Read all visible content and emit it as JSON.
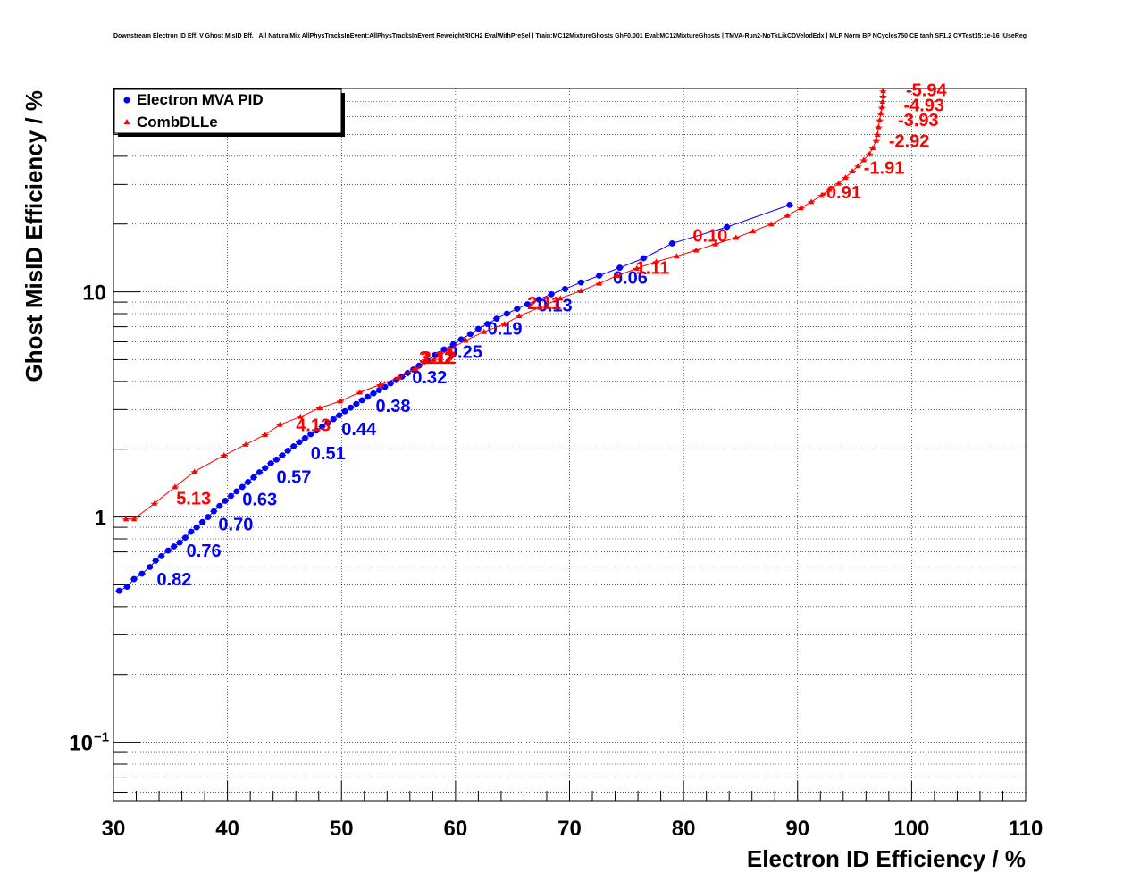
{
  "chart_data": {
    "type": "scatter",
    "title": "Downstream Electron ID Eff. V Ghost MisID Eff. | All NaturalMix AllPhysTracksInEvent:AllPhysTracksInEvent ReweightRICH2 EvalWithPreSel | Train:MC12MixtureGhosts GhF0.001 Eval:MC12MixtureGhosts | TMVA-Run2-NoTkLikCDVelodEdx | MLP Norm BP NCycles750 CE tanh SF1.2 CVTest15:1e-16 !UseReg",
    "xlabel": "Electron ID Efficiency / %",
    "ylabel": "Ghost MisID Efficiency / %",
    "xlim": [
      30,
      110
    ],
    "ylim": [
      0.055,
      80
    ],
    "y_scale": "log",
    "x_ticks": [
      "30",
      "40",
      "50",
      "60",
      "70",
      "80",
      "90",
      "100",
      "110"
    ],
    "y_ticks": [
      {
        "value": 0.1,
        "base": "10",
        "exp": "−1"
      },
      {
        "value": 1,
        "base": "1",
        "exp": ""
      },
      {
        "value": 10,
        "base": "10",
        "exp": ""
      }
    ],
    "grid": true,
    "legend_position": "top-left",
    "series": [
      {
        "name": "Electron MVA PID",
        "color": "#0000ff",
        "marker": "circle",
        "points": [
          [
            30.5,
            0.47
          ],
          [
            31.2,
            0.49
          ],
          [
            31.8,
            0.53
          ],
          [
            32.5,
            0.56
          ],
          [
            33.2,
            0.6
          ],
          [
            33.7,
            0.64
          ],
          [
            34.2,
            0.67
          ],
          [
            34.8,
            0.71
          ],
          [
            35.3,
            0.74
          ],
          [
            35.8,
            0.77
          ],
          [
            36.3,
            0.81
          ],
          [
            36.8,
            0.86
          ],
          [
            37.3,
            0.9
          ],
          [
            37.8,
            0.95
          ],
          [
            38.3,
            1.0
          ],
          [
            38.8,
            1.06
          ],
          [
            39.3,
            1.12
          ],
          [
            39.8,
            1.18
          ],
          [
            40.3,
            1.24
          ],
          [
            40.8,
            1.3
          ],
          [
            41.3,
            1.36
          ],
          [
            41.8,
            1.43
          ],
          [
            42.3,
            1.5
          ],
          [
            42.8,
            1.58
          ],
          [
            43.3,
            1.65
          ],
          [
            43.8,
            1.73
          ],
          [
            44.3,
            1.8
          ],
          [
            44.8,
            1.88
          ],
          [
            45.3,
            1.97
          ],
          [
            45.8,
            2.06
          ],
          [
            46.3,
            2.15
          ],
          [
            46.8,
            2.24
          ],
          [
            47.3,
            2.33
          ],
          [
            47.8,
            2.42
          ],
          [
            48.3,
            2.52
          ],
          [
            48.8,
            2.62
          ],
          [
            49.3,
            2.72
          ],
          [
            49.8,
            2.83
          ],
          [
            50.3,
            2.95
          ],
          [
            50.8,
            3.06
          ],
          [
            51.3,
            3.18
          ],
          [
            51.8,
            3.3
          ],
          [
            52.3,
            3.42
          ],
          [
            52.8,
            3.54
          ],
          [
            53.3,
            3.66
          ],
          [
            53.8,
            3.78
          ],
          [
            54.3,
            3.92
          ],
          [
            54.8,
            4.06
          ],
          [
            55.3,
            4.2
          ],
          [
            55.8,
            4.36
          ],
          [
            56.3,
            4.52
          ],
          [
            56.8,
            4.7
          ],
          [
            57.5,
            4.95
          ],
          [
            58.2,
            5.25
          ],
          [
            59.0,
            5.55
          ],
          [
            59.8,
            5.85
          ],
          [
            60.5,
            6.15
          ],
          [
            61.3,
            6.5
          ],
          [
            62.0,
            6.85
          ],
          [
            62.8,
            7.2
          ],
          [
            63.6,
            7.6
          ],
          [
            64.5,
            8.0
          ],
          [
            65.4,
            8.4
          ],
          [
            66.3,
            8.8
          ],
          [
            67.3,
            9.25
          ],
          [
            68.4,
            9.75
          ],
          [
            69.6,
            10.3
          ],
          [
            71.0,
            11.0
          ],
          [
            72.6,
            11.8
          ],
          [
            74.4,
            12.8
          ],
          [
            76.5,
            14.1
          ],
          [
            79.0,
            16.4
          ],
          [
            83.8,
            19.4
          ],
          [
            89.3,
            24.3
          ]
        ],
        "labels": [
          {
            "x": 33.8,
            "y": 0.53,
            "text": "0.82"
          },
          {
            "x": 36.4,
            "y": 0.71,
            "text": "0.76"
          },
          {
            "x": 39.2,
            "y": 0.93,
            "text": "0.70"
          },
          {
            "x": 41.3,
            "y": 1.2,
            "text": "0.63"
          },
          {
            "x": 44.3,
            "y": 1.51,
            "text": "0.57"
          },
          {
            "x": 47.3,
            "y": 1.92,
            "text": "0.51"
          },
          {
            "x": 50.0,
            "y": 2.46,
            "text": "0.44"
          },
          {
            "x": 53.0,
            "y": 3.12,
            "text": "0.38"
          },
          {
            "x": 56.2,
            "y": 4.18,
            "text": "0.32"
          },
          {
            "x": 59.3,
            "y": 5.42,
            "text": "0.25"
          },
          {
            "x": 62.8,
            "y": 6.88,
            "text": "0.19"
          },
          {
            "x": 67.2,
            "y": 8.71,
            "text": "0.13"
          },
          {
            "x": 73.8,
            "y": 11.6,
            "text": "0.06"
          }
        ]
      },
      {
        "name": "CombDLLe",
        "color": "#ff0000",
        "marker": "triangle",
        "points": [
          [
            31.1,
            0.98
          ],
          [
            31.8,
            0.98
          ],
          [
            33.6,
            1.15
          ],
          [
            35.4,
            1.36
          ],
          [
            37.1,
            1.59
          ],
          [
            39.7,
            1.88
          ],
          [
            41.6,
            2.1
          ],
          [
            43.3,
            2.32
          ],
          [
            44.6,
            2.57
          ],
          [
            46.4,
            2.79
          ],
          [
            48.1,
            3.05
          ],
          [
            49.9,
            3.27
          ],
          [
            51.6,
            3.58
          ],
          [
            53.4,
            3.87
          ],
          [
            55.0,
            4.17
          ],
          [
            56.5,
            4.56
          ],
          [
            58.1,
            5.01
          ],
          [
            59.5,
            5.57
          ],
          [
            60.9,
            6.09
          ],
          [
            62.5,
            6.65
          ],
          [
            64.3,
            7.19
          ],
          [
            65.6,
            7.81
          ],
          [
            67.4,
            8.52
          ],
          [
            69.2,
            9.36
          ],
          [
            71.0,
            10.1
          ],
          [
            72.6,
            10.9
          ],
          [
            74.2,
            11.8
          ],
          [
            75.9,
            12.7
          ],
          [
            77.6,
            13.6
          ],
          [
            79.4,
            14.4
          ],
          [
            81.1,
            15.3
          ],
          [
            82.8,
            16.3
          ],
          [
            84.6,
            17.4
          ],
          [
            86.1,
            18.6
          ],
          [
            87.7,
            20.0
          ],
          [
            89.1,
            21.8
          ],
          [
            90.3,
            23.6
          ],
          [
            91.2,
            25.1
          ],
          [
            92.1,
            26.8
          ],
          [
            92.8,
            28.5
          ],
          [
            93.6,
            30.3
          ],
          [
            94.2,
            32.2
          ],
          [
            94.8,
            34.3
          ],
          [
            95.3,
            36.2
          ],
          [
            95.8,
            38.5
          ],
          [
            96.3,
            41.0
          ],
          [
            96.6,
            43.5
          ],
          [
            96.9,
            47.0
          ],
          [
            97.0,
            50.0
          ],
          [
            97.1,
            54.0
          ],
          [
            97.2,
            58.0
          ],
          [
            97.3,
            62.0
          ],
          [
            97.4,
            66.0
          ],
          [
            97.45,
            70.0
          ],
          [
            97.5,
            74.0
          ],
          [
            97.5,
            78.0
          ]
        ],
        "labels": [
          {
            "x": 35.5,
            "y": 1.21,
            "text": "5.13"
          },
          {
            "x": 46.0,
            "y": 2.56,
            "text": "4.13"
          },
          {
            "x": 56.8,
            "y": 5.12,
            "text": "3.12"
          },
          {
            "x": 57.0,
            "y": 5.12,
            "text": "2.12"
          },
          {
            "x": 66.3,
            "y": 8.93,
            "text": "2.11"
          },
          {
            "x": 75.8,
            "y": 12.8,
            "text": "1.11"
          },
          {
            "x": 80.8,
            "y": 17.8,
            "text": "0.10"
          },
          {
            "x": 92.0,
            "y": 27.7,
            "text": "-0.91"
          },
          {
            "x": 95.8,
            "y": 35.7,
            "text": "-1.91"
          },
          {
            "x": 98.0,
            "y": 46.8,
            "text": "-2.92"
          },
          {
            "x": 98.8,
            "y": 58.0,
            "text": "-3.93"
          },
          {
            "x": 99.3,
            "y": 67.6,
            "text": "-4.93"
          },
          {
            "x": 99.5,
            "y": 78.9,
            "text": "-5.94"
          }
        ]
      }
    ]
  }
}
